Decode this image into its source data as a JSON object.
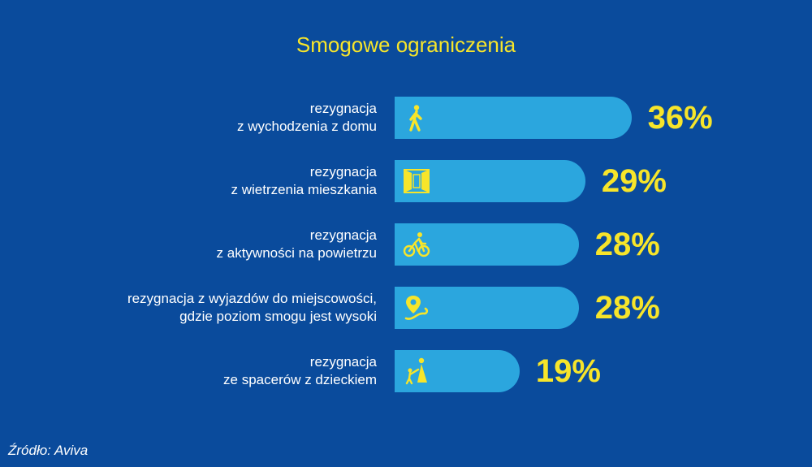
{
  "chart_data": {
    "type": "bar",
    "orientation": "horizontal",
    "title": "Smogowe ograniczenia",
    "categories": [
      [
        "rezygnacja",
        "z wychodzenia z domu"
      ],
      [
        "rezygnacja",
        "z wietrzenia mieszkania"
      ],
      [
        "rezygnacja",
        "z aktywności na powietrzu"
      ],
      [
        "rezygnacja z wyjazdów do miejscowości,",
        "gdzie poziom smogu jest wysoki"
      ],
      [
        "rezygnacja",
        "ze spacerów z dzieckiem"
      ]
    ],
    "values": [
      36,
      29,
      28,
      28,
      19
    ],
    "value_labels": [
      "36%",
      "29%",
      "28%",
      "28%",
      "19%"
    ],
    "icons": [
      "walking-person-icon",
      "open-window-icon",
      "cyclist-icon",
      "map-location-icon",
      "parent-with-child-icon"
    ],
    "colors": {
      "background": "#0a4b9c",
      "bar": "#2ba6de",
      "accent": "#f7e52a"
    },
    "source": "Źródło: Aviva"
  }
}
